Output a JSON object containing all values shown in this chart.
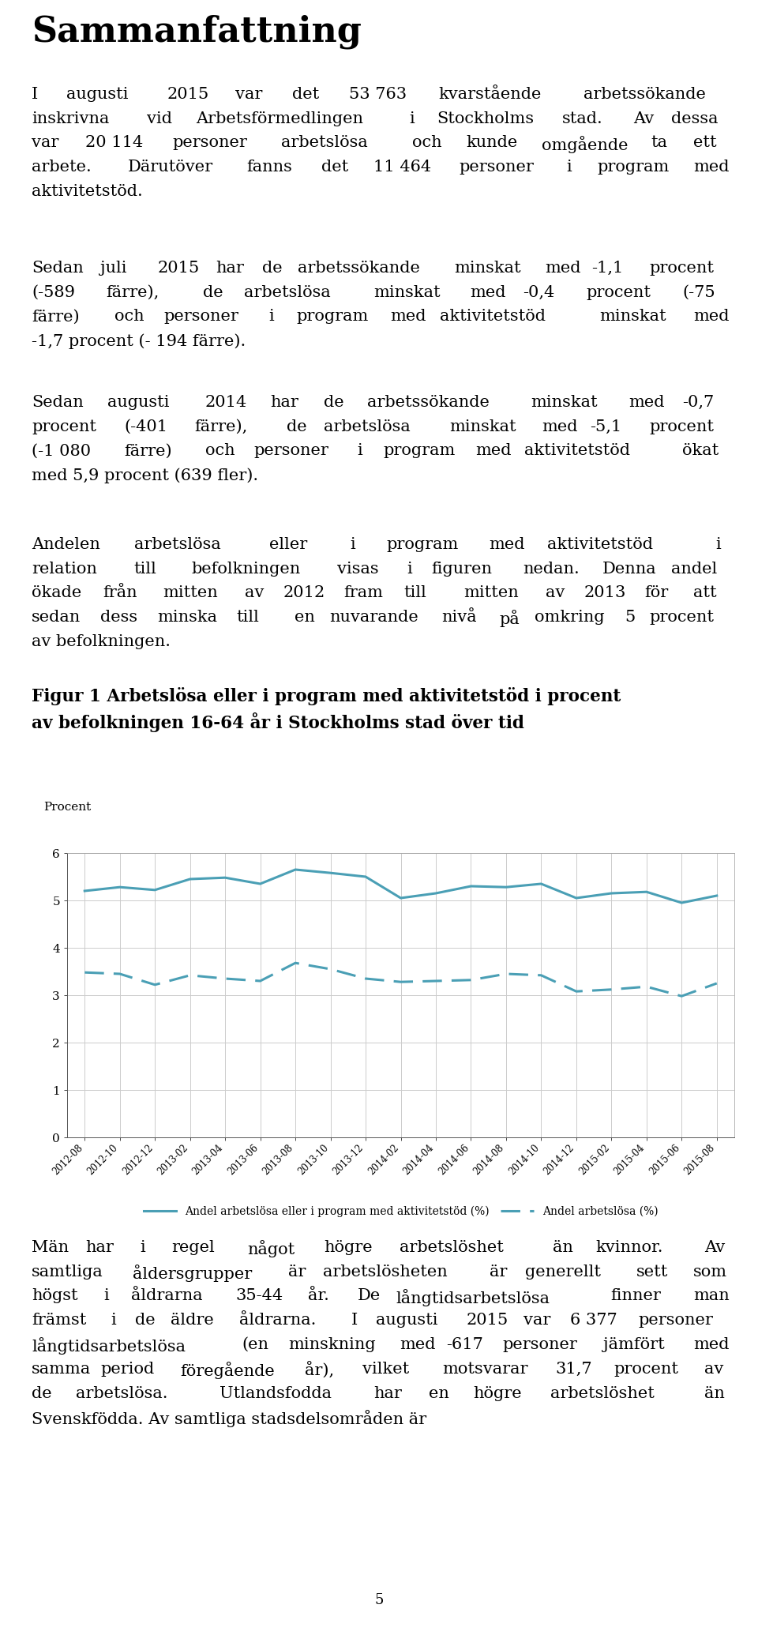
{
  "title": "Sammanfattning",
  "para1": "I augusti 2015 var det 53 763 kvarstående arbetssökande inskrivna vid Arbetsförmedlingen i Stockholms stad. Av dessa var 20 114 personer arbetslösa och kunde omgående ta ett arbete. Därutöver fanns det 11 464 personer i program med aktivitetstöd.",
  "para2": "Sedan juli 2015 har de arbetssökande minskat med -1,1 procent (-589 färre), de arbetslösa minskat med -0,4 procent (-75 färre) och personer i program med aktivitetstöd minskat med -1,7 procent (- 194 färre).",
  "para3": "Sedan augusti 2014 har de arbetssökande minskat med -0,7 procent (-401 färre), de arbetslösa minskat med -5,1 procent (-1 080 färre) och personer i program med aktivitetstöd ökat med 5,9 procent (639 fler).",
  "para4": "Andelen arbetslösa eller i program med aktivitetstöd i relation till befolkningen visas i figuren nedan. Denna andel ökade från mitten av 2012 fram till mitten av 2013 för att sedan dess minska till en nuvarande nivå på omkring 5 procent av befolkningen.",
  "fig_title_line1": "Figur 1 Arbetslösa eller i program med aktivitetstöd i procent",
  "fig_title_line2": "av befolkningen 16-64 år i Stockholms stad över tid",
  "ylabel": "Procent",
  "ylim": [
    0,
    6
  ],
  "yticks": [
    0,
    1,
    2,
    3,
    4,
    5,
    6
  ],
  "x_labels": [
    "2012-08",
    "2012-10",
    "2012-12",
    "2013-02",
    "2013-04",
    "2013-06",
    "2013-08",
    "2013-10",
    "2013-12",
    "2014-02",
    "2014-04",
    "2014-06",
    "2014-08",
    "2014-10",
    "2014-12",
    "2015-02",
    "2015-04",
    "2015-06",
    "2015-08"
  ],
  "solid_line": [
    5.2,
    5.28,
    5.22,
    5.45,
    5.48,
    5.35,
    5.65,
    5.58,
    5.5,
    5.05,
    5.15,
    5.3,
    5.28,
    5.35,
    5.05,
    5.15,
    5.18,
    4.95,
    5.1
  ],
  "dashed_line": [
    3.48,
    3.45,
    3.22,
    3.42,
    3.35,
    3.3,
    3.68,
    3.55,
    3.35,
    3.28,
    3.3,
    3.32,
    3.45,
    3.42,
    3.08,
    3.12,
    3.18,
    2.98,
    3.25
  ],
  "line_color": "#4a9fb5",
  "legend_solid": "Andel arbetslösa eller i program med aktivitetstöd (%)",
  "legend_dashed": "Andel arbetslösa (%)",
  "para5": "Män har i regel något högre arbetslöshet än kvinnor. Av samtliga åldersgrupper är arbetslösheten är generellt sett som högst i åldrarna 35-44 år. De långtidsarbetslösa finner man främst i de äldre åldrarna. I augusti 2015 var 6 377 personer långtidsarbetslösa (en minskning med -617 personer jämfört med samma period föregående år), vilket motsvarar 31,7 procent av de arbetslösa. Utlandsfodda har en högre arbetslöshet än Svenskfödda. Av samtliga stadsdelsområden är",
  "page_number": "5",
  "bg_color": "#ffffff",
  "text_color": "#000000",
  "body_fontsize": 15,
  "title_fontsize": 32,
  "fig_title_fontsize": 15.5
}
